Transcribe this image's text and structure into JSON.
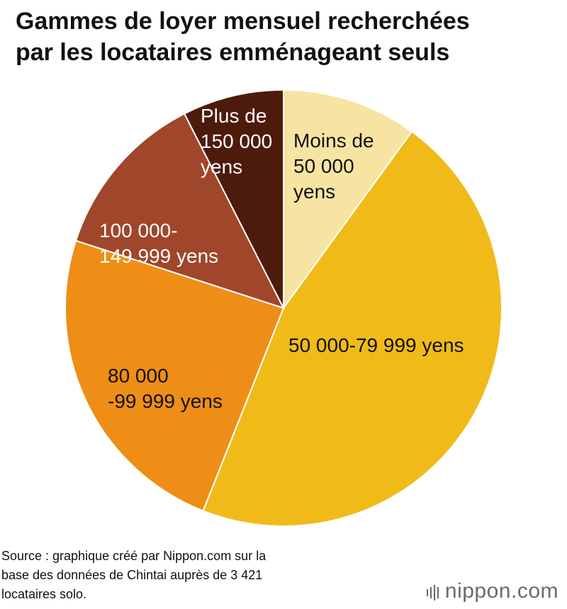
{
  "title_lines": [
    "Gammes de loyer mensuel recherchées",
    "par les locataires emménageant seuls"
  ],
  "chart_data": {
    "type": "pie",
    "title": "Gammes de loyer mensuel recherchées par les locataires emménageant seuls",
    "slices": [
      {
        "label_lines": [
          "Moins de",
          "50 000",
          "yens"
        ],
        "value": 10,
        "color": "#f7e4a3",
        "label_color": "#111111"
      },
      {
        "label_lines": [
          "50 000-79 999 yens"
        ],
        "value": 46,
        "color": "#f0bb19",
        "label_color": "#111111"
      },
      {
        "label_lines": [
          "80 000",
          "-99 999 yens"
        ],
        "value": 24,
        "color": "#ee8e16",
        "label_color": "#111111"
      },
      {
        "label_lines": [
          "100 000-",
          "149 999 yens"
        ],
        "value": 12.5,
        "color": "#a0462a",
        "label_color": "#ffffff"
      },
      {
        "label_lines": [
          "Plus de",
          "150 000",
          "yens"
        ],
        "value": 7.5,
        "color": "#4d1b0c",
        "label_color": "#ffffff"
      }
    ],
    "start": "12 o'clock",
    "direction": "clockwise"
  },
  "source_lines": [
    "Source : graphique créé par Nippon.com sur la",
    "base des données de Chintai auprès de 3 421",
    "locataires solo."
  ],
  "brand": {
    "name": "nippon",
    "suffix": ".com",
    "color": "#6b6b6b"
  }
}
